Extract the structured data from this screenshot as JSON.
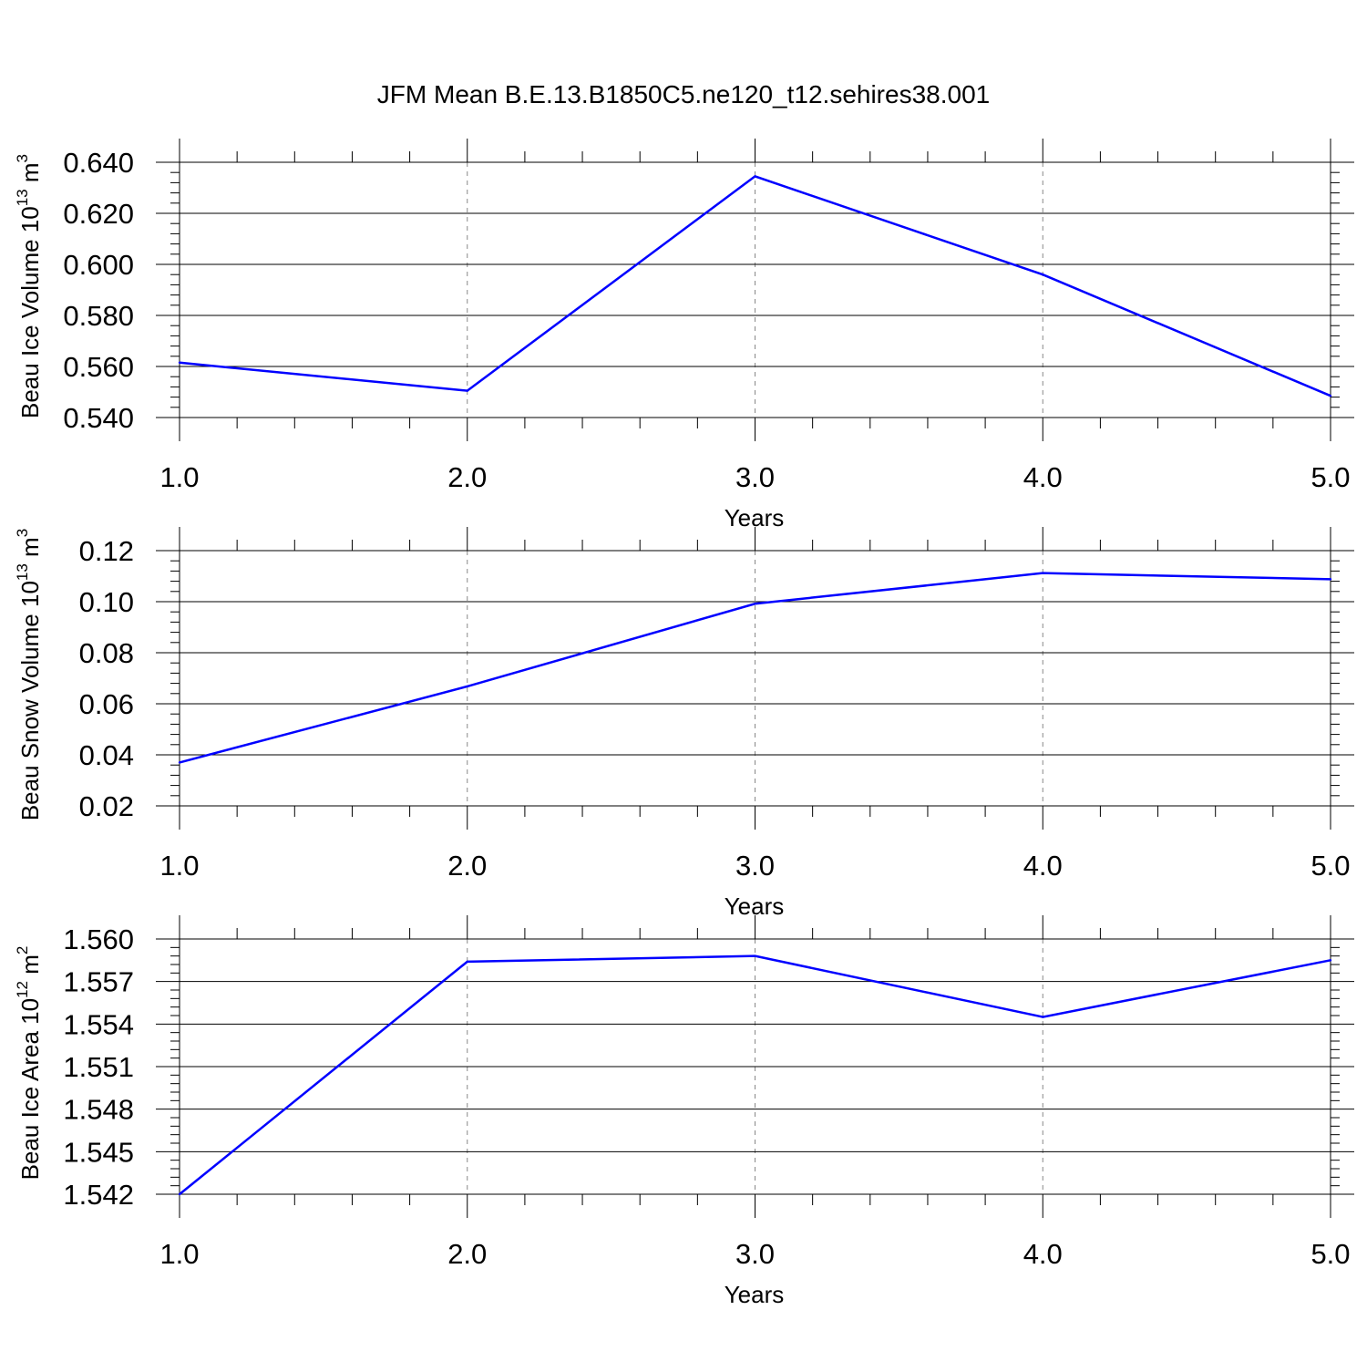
{
  "figure": {
    "title": "JFM Mean B.E.13.B1850C5.ne120_t12.sehires38.001",
    "line_color": "#0000ff"
  },
  "chart_data": [
    {
      "type": "line",
      "title": "JFM Mean B.E.13.B1850C5.ne120_t12.sehires38.001",
      "xlabel": "Years",
      "ylabel": {
        "prefix": "Beau Ice Volume 10",
        "exponent": "13",
        "unit": "m",
        "unit_exponent": "3"
      },
      "x": [
        1,
        2,
        3,
        4,
        5
      ],
      "y": [
        0.5615,
        0.5505,
        0.6345,
        0.596,
        0.5485
      ],
      "xlim": [
        1,
        5
      ],
      "ylim": [
        0.54,
        0.64
      ],
      "xticks": [
        1,
        2,
        3,
        4,
        5
      ],
      "xticklabels": [
        "1.0",
        "2.0",
        "3.0",
        "4.0",
        "5.0"
      ],
      "yticks": [
        0.54,
        0.56,
        0.58,
        0.6,
        0.62,
        0.64
      ],
      "yticklabels": [
        "0.540",
        "0.560",
        "0.580",
        "0.600",
        "0.620",
        "0.640"
      ],
      "y_minor_step": 0.004,
      "x_minor_step": 0.2,
      "grid": "x dashed"
    },
    {
      "type": "line",
      "xlabel": "Years",
      "ylabel": {
        "prefix": "Beau Snow Volume 10",
        "exponent": "13",
        "unit": "m",
        "unit_exponent": "3"
      },
      "x": [
        1,
        2,
        3,
        4,
        5
      ],
      "y": [
        0.037,
        0.0668,
        0.0992,
        0.1112,
        0.1088
      ],
      "xlim": [
        1,
        5
      ],
      "ylim": [
        0.02,
        0.12
      ],
      "xticks": [
        1,
        2,
        3,
        4,
        5
      ],
      "xticklabels": [
        "1.0",
        "2.0",
        "3.0",
        "4.0",
        "5.0"
      ],
      "yticks": [
        0.02,
        0.04,
        0.06,
        0.08,
        0.1,
        0.12
      ],
      "yticklabels": [
        "0.02",
        "0.04",
        "0.06",
        "0.08",
        "0.10",
        "0.12"
      ],
      "y_minor_step": 0.004,
      "x_minor_step": 0.2,
      "grid": "x dashed"
    },
    {
      "type": "line",
      "xlabel": "Years",
      "ylabel": {
        "prefix": "Beau Ice Area 10",
        "exponent": "12",
        "unit": "m",
        "unit_exponent": "2"
      },
      "x": [
        1,
        2,
        3,
        4,
        5
      ],
      "y": [
        1.542,
        1.5584,
        1.5588,
        1.5545,
        1.5585
      ],
      "xlim": [
        1,
        5
      ],
      "ylim": [
        1.542,
        1.56
      ],
      "xticks": [
        1,
        2,
        3,
        4,
        5
      ],
      "xticklabels": [
        "1.0",
        "2.0",
        "3.0",
        "4.0",
        "5.0"
      ],
      "yticks": [
        1.542,
        1.545,
        1.548,
        1.551,
        1.554,
        1.557,
        1.56
      ],
      "yticklabels": [
        "1.542",
        "1.545",
        "1.548",
        "1.551",
        "1.554",
        "1.557",
        "1.560"
      ],
      "y_minor_step": 0.0006,
      "x_minor_step": 0.2,
      "grid": "x dashed"
    }
  ]
}
